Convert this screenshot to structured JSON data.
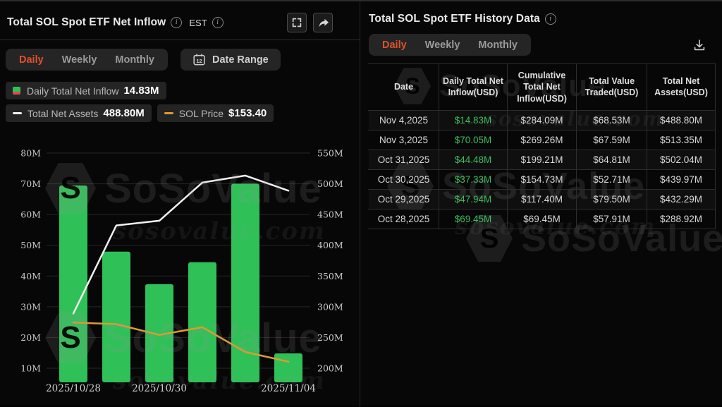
{
  "left_panel": {
    "title": "Total SOL Spot ETF Net Inflow",
    "timezone_label": "EST",
    "tabs": [
      "Daily",
      "Weekly",
      "Monthly"
    ],
    "active_tab": "Daily",
    "date_range_label": "Date Range",
    "calendar_day": "12",
    "legend": {
      "inflow_label": "Daily Total Net Inflow",
      "inflow_value": "14.83M",
      "assets_label": "Total Net Assets",
      "assets_value": "488.80M",
      "price_label": "SOL Price",
      "price_value": "$153.40"
    }
  },
  "right_panel": {
    "title": "Total SOL Spot ETF History Data",
    "tabs": [
      "Daily",
      "Weekly",
      "Monthly"
    ],
    "active_tab": "Daily",
    "table": {
      "columns": [
        "Date",
        "Daily Total Net Inflow(USD)",
        "Cumulative Total Net Inflow(USD)",
        "Total Value Traded(USD)",
        "Total Net Assets(USD)"
      ],
      "rows": [
        [
          "Nov 4,2025",
          "$14.83M",
          "$284.09M",
          "$68.53M",
          "$488.80M"
        ],
        [
          "Nov 3,2025",
          "$70.05M",
          "$269.26M",
          "$67.59M",
          "$513.35M"
        ],
        [
          "Oct 31,2025",
          "$44.48M",
          "$199.21M",
          "$64.81M",
          "$502.04M"
        ],
        [
          "Oct 30,2025",
          "$37.33M",
          "$154.73M",
          "$52.71M",
          "$439.97M"
        ],
        [
          "Oct 29,2025",
          "$47.94M",
          "$117.40M",
          "$79.50M",
          "$432.29M"
        ],
        [
          "Oct 28,2025",
          "$69.45M",
          "$69.45M",
          "$57.91M",
          "$288.92M"
        ]
      ]
    }
  },
  "watermark": {
    "brand": "SoSoValue",
    "domain": "sosovalue.com",
    "logo_letter": "S"
  },
  "colors": {
    "accent_orange": "#e0512b",
    "bar_green": "#2fc158",
    "legend_red": "#e04b4b",
    "assets_line": "#f0f0f0",
    "price_line": "#e09a2f",
    "table_green": "#3dbd5c",
    "axis_text": "#cccccc",
    "gridline": "#272727"
  },
  "chart_data": {
    "type": "bar",
    "x": [
      "2025/10/28",
      "2025/10/29",
      "2025/10/30",
      "2025/10/31",
      "2025/11/03",
      "2025/11/04"
    ],
    "x_tick_labels": [
      {
        "label": "2025/10/28",
        "bar_index": 0
      },
      {
        "label": "2025/10/30",
        "bar_index": 2
      },
      {
        "label": "2025/11/04",
        "bar_index": 5
      }
    ],
    "series": [
      {
        "name": "Daily Total Net Inflow",
        "type": "bar",
        "axis": "left",
        "values_musd": [
          69.45,
          47.94,
          37.33,
          44.48,
          70.05,
          14.83
        ]
      },
      {
        "name": "Total Net Assets",
        "type": "line",
        "axis": "right",
        "values_musd": [
          288.92,
          432.29,
          439.97,
          502.04,
          513.35,
          488.8
        ]
      },
      {
        "name": "SOL Price",
        "type": "line",
        "axis": "price",
        "values_usd_est": [
          204,
          202,
          188,
          198,
          166,
          153.4
        ]
      }
    ],
    "left_axis": {
      "ticks": [
        "80M",
        "70M",
        "60M",
        "50M",
        "40M",
        "30M",
        "20M",
        "10M"
      ],
      "min": 10,
      "max": 80
    },
    "right_axis": {
      "ticks": [
        "550M",
        "500M",
        "450M",
        "400M",
        "350M",
        "300M",
        "250M",
        "200M"
      ],
      "min": 200,
      "max": 550
    },
    "grid": true,
    "legend_position": "top-left"
  }
}
